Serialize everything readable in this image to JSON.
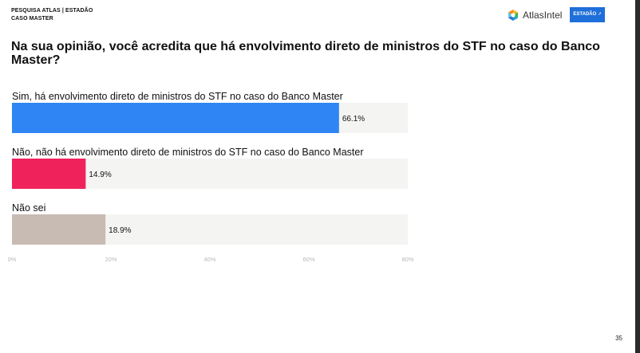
{
  "header": {
    "line1": "PESQUISA ATLAS | ESTADÃO",
    "line2": "CASO MASTER",
    "atlas_logo_text": "AtlasIntel",
    "estadao_logo_text": "ESTADÃO"
  },
  "question": "Na sua opinião, você acredita que há envolvimento direto de ministros do STF no caso do Banco Master?",
  "page_number": "35",
  "colors": {
    "bar_blue": "#2f85f3",
    "bar_pink": "#f0225c",
    "bar_taupe": "#c8bbb4",
    "track": "#f4f4f2",
    "estadao_blue": "#1e6fd9"
  },
  "chart_data": {
    "type": "bar",
    "orientation": "horizontal",
    "categories": [
      "Sim, há envolvimento direto de ministros do STF no caso do Banco Master",
      "Não, não há envolvimento direto de ministros do STF no caso do Banco Master",
      "Não sei"
    ],
    "values": [
      66.1,
      14.9,
      18.9
    ],
    "value_labels": [
      "66.1%",
      "14.9%",
      "18.9%"
    ],
    "colors": [
      "#2f85f3",
      "#f0225c",
      "#c8bbb4"
    ],
    "xlim": [
      0,
      80
    ],
    "ticks": [
      0,
      20,
      40,
      60,
      80
    ],
    "tick_labels": [
      "0%",
      "20%",
      "40%",
      "60%",
      "80%"
    ],
    "grid": false
  }
}
